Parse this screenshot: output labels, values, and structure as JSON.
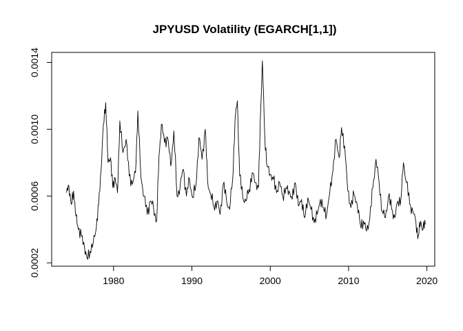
{
  "chart_data": {
    "type": "line",
    "title": "JPYUSD Volatility (EGARCH[1,1])",
    "xlabel": "",
    "ylabel": "",
    "xlim": [
      1972.1,
      2021.0
    ],
    "ylim": [
      0.00018,
      0.00146
    ],
    "x_ticks": [
      1980,
      1990,
      2000,
      2010,
      2020
    ],
    "x_tick_labels": [
      "1980",
      "1990",
      "2000",
      "2010",
      "2020"
    ],
    "y_ticks": [
      0.0002,
      0.0006,
      0.001,
      0.0014
    ],
    "y_tick_labels": [
      "0.0002",
      "0.0006",
      "0.0010",
      "0.0014"
    ],
    "grid": false,
    "legend": "none",
    "series": [
      {
        "color": "#000000",
        "points": [
          [
            1974.0,
            0.00062
          ],
          [
            1974.3,
            0.00066
          ],
          [
            1974.6,
            0.00055
          ],
          [
            1974.9,
            0.00063
          ],
          [
            1975.2,
            0.00048
          ],
          [
            1975.5,
            0.0004
          ],
          [
            1975.9,
            0.00036
          ],
          [
            1976.3,
            0.00029
          ],
          [
            1976.6,
            0.00023
          ],
          [
            1977.0,
            0.00027
          ],
          [
            1977.4,
            0.00032
          ],
          [
            1977.8,
            0.00041
          ],
          [
            1978.1,
            0.00055
          ],
          [
            1978.4,
            0.00075
          ],
          [
            1978.7,
            0.00103
          ],
          [
            1979.0,
            0.00116
          ],
          [
            1979.3,
            0.0008
          ],
          [
            1979.6,
            0.00083
          ],
          [
            1979.9,
            0.00065
          ],
          [
            1980.2,
            0.00071
          ],
          [
            1980.5,
            0.00062
          ],
          [
            1980.8,
            0.00105
          ],
          [
            1981.2,
            0.00086
          ],
          [
            1981.6,
            0.00094
          ],
          [
            1982.0,
            0.00072
          ],
          [
            1982.4,
            0.00067
          ],
          [
            1982.8,
            0.00074
          ],
          [
            1983.1,
            0.00111
          ],
          [
            1983.5,
            0.00071
          ],
          [
            1983.9,
            0.0006
          ],
          [
            1984.3,
            0.00049
          ],
          [
            1984.7,
            0.00057
          ],
          [
            1985.1,
            0.00053
          ],
          [
            1985.5,
            0.00045
          ],
          [
            1985.8,
            0.00084
          ],
          [
            1986.1,
            0.00103
          ],
          [
            1986.5,
            0.00092
          ],
          [
            1986.9,
            0.00095
          ],
          [
            1987.3,
            0.00078
          ],
          [
            1987.7,
            0.00099
          ],
          [
            1988.1,
            0.0006
          ],
          [
            1988.5,
            0.00066
          ],
          [
            1988.9,
            0.00076
          ],
          [
            1989.3,
            0.0006
          ],
          [
            1989.7,
            0.0007
          ],
          [
            1990.1,
            0.00059
          ],
          [
            1990.5,
            0.00066
          ],
          [
            1990.9,
            0.00095
          ],
          [
            1991.3,
            0.00082
          ],
          [
            1991.7,
            0.001
          ],
          [
            1992.0,
            0.00069
          ],
          [
            1992.4,
            0.00061
          ],
          [
            1992.8,
            0.00054
          ],
          [
            1993.2,
            0.00057
          ],
          [
            1993.6,
            0.00049
          ],
          [
            1994.0,
            0.00067
          ],
          [
            1994.4,
            0.00058
          ],
          [
            1994.8,
            0.00052
          ],
          [
            1995.2,
            0.0007
          ],
          [
            1995.5,
            0.00105
          ],
          [
            1995.8,
            0.00117
          ],
          [
            1996.1,
            0.00072
          ],
          [
            1996.5,
            0.00059
          ],
          [
            1996.9,
            0.00057
          ],
          [
            1997.3,
            0.00064
          ],
          [
            1997.7,
            0.00074
          ],
          [
            1998.1,
            0.00068
          ],
          [
            1998.5,
            0.00065
          ],
          [
            1998.8,
            0.00114
          ],
          [
            1999.0,
            0.00141
          ],
          [
            1999.3,
            0.00096
          ],
          [
            1999.6,
            0.00078
          ],
          [
            2000.0,
            0.00073
          ],
          [
            2000.4,
            0.0007
          ],
          [
            2000.8,
            0.00062
          ],
          [
            2001.2,
            0.00068
          ],
          [
            2001.6,
            0.0006
          ],
          [
            2002.0,
            0.00065
          ],
          [
            2002.4,
            0.00063
          ],
          [
            2002.8,
            0.00058
          ],
          [
            2003.2,
            0.00068
          ],
          [
            2003.6,
            0.00054
          ],
          [
            2004.0,
            0.00058
          ],
          [
            2004.4,
            0.00047
          ],
          [
            2004.8,
            0.00059
          ],
          [
            2005.2,
            0.00052
          ],
          [
            2005.6,
            0.00044
          ],
          [
            2006.0,
            0.00049
          ],
          [
            2006.4,
            0.00058
          ],
          [
            2006.8,
            0.00053
          ],
          [
            2007.2,
            0.00049
          ],
          [
            2007.6,
            0.00062
          ],
          [
            2008.0,
            0.00075
          ],
          [
            2008.4,
            0.00094
          ],
          [
            2008.8,
            0.00083
          ],
          [
            2009.1,
            0.00101
          ],
          [
            2009.5,
            0.0009
          ],
          [
            2009.9,
            0.00063
          ],
          [
            2010.3,
            0.00053
          ],
          [
            2010.7,
            0.00061
          ],
          [
            2011.1,
            0.00055
          ],
          [
            2011.5,
            0.00043
          ],
          [
            2011.9,
            0.00045
          ],
          [
            2012.3,
            0.00039
          ],
          [
            2012.7,
            0.00046
          ],
          [
            2013.1,
            0.00065
          ],
          [
            2013.5,
            0.00082
          ],
          [
            2013.9,
            0.00068
          ],
          [
            2014.3,
            0.00051
          ],
          [
            2014.7,
            0.00047
          ],
          [
            2015.1,
            0.0006
          ],
          [
            2015.5,
            0.00052
          ],
          [
            2015.9,
            0.00047
          ],
          [
            2016.3,
            0.00057
          ],
          [
            2016.7,
            0.00059
          ],
          [
            2017.0,
            0.0008
          ],
          [
            2017.4,
            0.00068
          ],
          [
            2017.8,
            0.00055
          ],
          [
            2018.2,
            0.00051
          ],
          [
            2018.6,
            0.00044
          ],
          [
            2018.9,
            0.00036
          ],
          [
            2019.2,
            0.00045
          ],
          [
            2019.5,
            0.0004
          ],
          [
            2019.8,
            0.00043
          ]
        ]
      }
    ]
  }
}
